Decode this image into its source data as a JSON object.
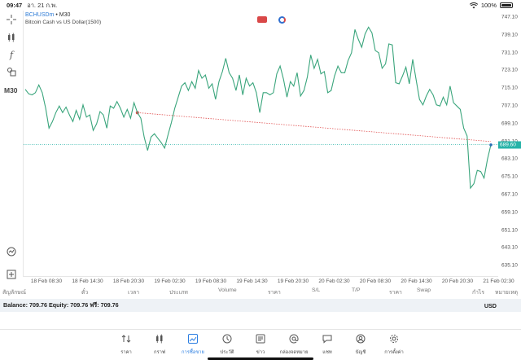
{
  "status_bar": {
    "time": "09:47",
    "date": "อา. 21 ก.พ.",
    "battery": "100%"
  },
  "toolbar": {
    "timeframe": "M30"
  },
  "chart_header": {
    "symbol": "BCHUSDm",
    "separator": " • ",
    "timeframe": "M30",
    "description": "Bitcoin Cash vs US Dollar(1500)"
  },
  "chart_data": {
    "type": "line",
    "x_ticks": [
      "18 Feb 08:30",
      "18 Feb 14:30",
      "18 Feb 20:30",
      "19 Feb 02:30",
      "19 Feb 08:30",
      "19 Feb 14:30",
      "19 Feb 20:30",
      "20 Feb 02:30",
      "20 Feb 08:30",
      "20 Feb 14:30",
      "20 Feb 20:30",
      "21 Feb 02:30"
    ],
    "y_ticks": [
      "747.10",
      "739.10",
      "731.10",
      "723.10",
      "715.10",
      "707.10",
      "699.10",
      "691.10",
      "683.10",
      "675.10",
      "667.10",
      "659.10",
      "651.10",
      "643.10",
      "635.10"
    ],
    "ylim": [
      630,
      750
    ],
    "current_price": "689.60",
    "current_price_value": 689.6,
    "values": [
      714.5,
      712.5,
      712,
      713,
      716.5,
      713,
      706,
      697,
      700,
      704,
      707,
      704,
      706.5,
      703,
      700,
      705,
      701,
      707.5,
      702,
      703,
      696,
      699,
      704.5,
      703,
      697,
      707,
      706,
      709,
      706,
      702,
      705.5,
      701.5,
      708.5,
      704,
      701.5,
      693,
      687,
      693,
      694.5,
      692.5,
      690.5,
      688,
      694,
      699.5,
      706,
      711,
      716,
      717.5,
      714,
      718,
      715,
      723,
      719.5,
      721,
      715,
      717,
      710,
      718,
      722.5,
      728.5,
      722,
      719.5,
      714,
      721,
      712,
      719.5,
      716,
      717.5,
      713,
      704,
      713,
      713,
      712,
      713,
      721.5,
      725,
      719,
      711,
      718,
      716,
      722,
      711.5,
      714,
      720,
      730,
      724,
      728,
      721.5,
      722.5,
      713,
      714,
      720.5,
      725,
      722,
      722,
      727.5,
      731,
      741.5,
      737,
      733.5,
      739.5,
      742.5,
      740,
      732,
      731,
      724,
      726,
      735,
      734.5,
      717.5,
      717,
      720.5,
      724.5,
      717,
      728,
      719,
      710,
      707.5,
      711.5,
      714.5,
      712,
      707.5,
      707,
      711,
      707.5,
      716,
      708.5,
      707,
      705.5,
      697,
      693.5,
      670,
      672,
      678,
      677.5,
      674.5,
      683,
      689.5
    ],
    "trendline": {
      "start_index": 33,
      "start_value": 704,
      "end_value": 691
    },
    "colors": {
      "line": "#3aa57c",
      "trendline": "#e05050",
      "price_line": "#27b3a8"
    }
  },
  "trade_table": {
    "headers": [
      "สัญลักษณ์",
      "ตั๋ว",
      "เวลา",
      "ประเภท",
      "Volume",
      "ราคา",
      "S/L",
      "T/P",
      "ราคา",
      "Swap",
      "กำไร",
      "หมายเหตุ"
    ]
  },
  "account": {
    "balance_text": "Balance: 709.76 Equity: 709.76 ฟรี: 709.76",
    "currency": "USD"
  },
  "tabs": [
    {
      "label": "ราคา",
      "icon": "quotes-icon",
      "active": false
    },
    {
      "label": "กราฟ",
      "icon": "candles-icon",
      "active": false
    },
    {
      "label": "การซื้อขาย",
      "icon": "trade-icon",
      "active": true
    },
    {
      "label": "ประวัติ",
      "icon": "history-icon",
      "active": false
    },
    {
      "label": "ข่าว",
      "icon": "news-icon",
      "active": false
    },
    {
      "label": "กล่องจดหมาย",
      "icon": "mailbox-icon",
      "active": false
    },
    {
      "label": "แชท",
      "icon": "chat-icon",
      "active": false
    },
    {
      "label": "บัญชี",
      "icon": "account-icon",
      "active": false
    },
    {
      "label": "การตั้งค่า",
      "icon": "settings-icon",
      "active": false
    }
  ]
}
